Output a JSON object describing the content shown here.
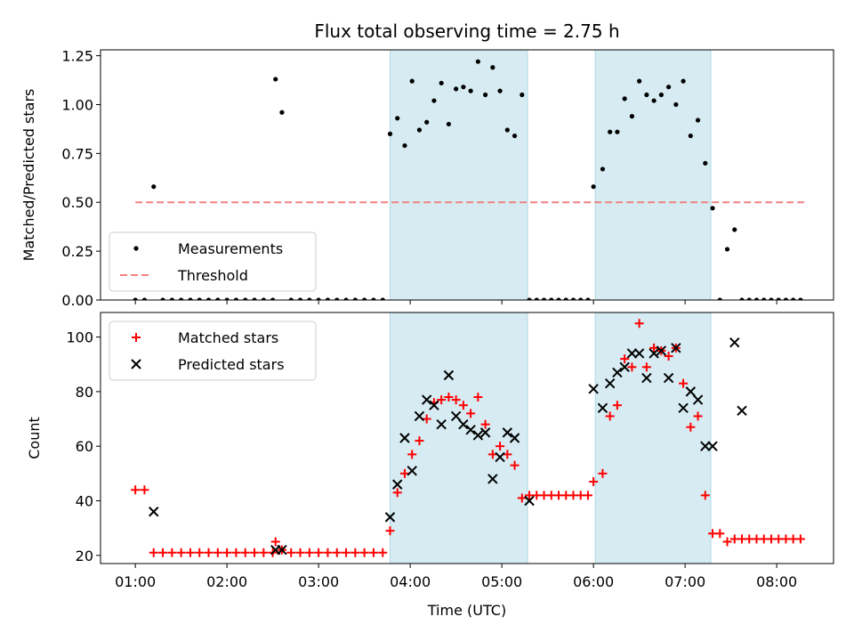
{
  "chart_data": {
    "type": "scatter",
    "title": "Flux total observing time = 2.75 h",
    "shaded_intervals_hours": [
      [
        3.78,
        5.28
      ],
      [
        6.02,
        7.28
      ]
    ],
    "shade_color": "#add8e6",
    "panels": [
      {
        "id": "ratio",
        "xlabel": "",
        "ylabel": "Matched/Predicted stars",
        "ylim": [
          0.0,
          1.28
        ],
        "yticks": [
          0.0,
          0.25,
          0.5,
          0.75,
          1.0,
          1.25
        ],
        "ytick_labels": [
          "0.00",
          "0.25",
          "0.50",
          "0.75",
          "1.00",
          "1.25"
        ],
        "legend_position": "lower-left",
        "series": [
          {
            "name": "Measurements",
            "marker": "dot",
            "color": "#000000",
            "x": [
              1.0,
              1.1,
              1.2,
              1.3,
              1.4,
              1.5,
              1.6,
              1.7,
              1.8,
              1.9,
              2.0,
              2.1,
              2.2,
              2.3,
              2.4,
              2.5,
              2.53,
              2.6,
              2.7,
              2.8,
              2.9,
              3.0,
              3.1,
              3.2,
              3.3,
              3.4,
              3.5,
              3.6,
              3.7,
              3.78,
              3.86,
              3.94,
              4.02,
              4.1,
              4.18,
              4.26,
              4.34,
              4.42,
              4.5,
              4.58,
              4.66,
              4.74,
              4.82,
              4.9,
              4.98,
              5.06,
              5.14,
              5.22,
              5.3,
              5.38,
              5.46,
              5.54,
              5.62,
              5.7,
              5.78,
              5.86,
              5.94,
              6.0,
              6.1,
              6.18,
              6.26,
              6.34,
              6.42,
              6.5,
              6.58,
              6.66,
              6.74,
              6.82,
              6.9,
              6.98,
              7.06,
              7.14,
              7.22,
              7.3,
              7.38,
              7.46,
              7.54,
              7.62,
              7.7,
              7.78,
              7.86,
              7.94,
              8.02,
              8.1,
              8.18,
              8.26
            ],
            "y": [
              0.0,
              0.0,
              0.58,
              0.0,
              0.0,
              0.0,
              0.0,
              0.0,
              0.0,
              0.0,
              0.0,
              0.0,
              0.0,
              0.0,
              0.0,
              0.0,
              1.13,
              0.96,
              0.0,
              0.0,
              0.0,
              0.0,
              0.0,
              0.0,
              0.0,
              0.0,
              0.0,
              0.0,
              0.0,
              0.85,
              0.93,
              0.79,
              1.12,
              0.87,
              0.91,
              1.02,
              1.11,
              0.9,
              1.08,
              1.09,
              1.07,
              1.22,
              1.05,
              1.19,
              1.07,
              0.87,
              0.84,
              1.05,
              0.0,
              0.0,
              0.0,
              0.0,
              0.0,
              0.0,
              0.0,
              0.0,
              0.0,
              0.58,
              0.67,
              0.86,
              0.86,
              1.03,
              0.94,
              1.12,
              1.05,
              1.02,
              1.05,
              1.09,
              1.0,
              1.12,
              0.84,
              0.92,
              0.7,
              0.47,
              0.0,
              0.26,
              0.36,
              0.0,
              0.0,
              0.0,
              0.0,
              0.0,
              0.0,
              0.0,
              0.0,
              0.0
            ]
          },
          {
            "name": "Threshold",
            "marker": "dashed-line",
            "color": "#f08080",
            "x": [
              1.0,
              8.3
            ],
            "y": [
              0.5,
              0.5
            ]
          }
        ]
      },
      {
        "id": "count",
        "xlabel": "Time (UTC)",
        "ylabel": "Count",
        "ylim": [
          17.0,
          109.0
        ],
        "yticks": [
          20,
          40,
          60,
          80,
          100
        ],
        "ytick_labels": [
          "20",
          "40",
          "60",
          "80",
          "100"
        ],
        "legend_position": "upper-left",
        "series": [
          {
            "name": "Matched stars",
            "marker": "plus",
            "color": "#ff0000",
            "x": [
              1.0,
              1.1,
              1.2,
              1.3,
              1.4,
              1.5,
              1.6,
              1.7,
              1.8,
              1.9,
              2.0,
              2.1,
              2.2,
              2.3,
              2.4,
              2.5,
              2.53,
              2.6,
              2.7,
              2.8,
              2.9,
              3.0,
              3.1,
              3.2,
              3.3,
              3.4,
              3.5,
              3.6,
              3.7,
              3.78,
              3.86,
              3.94,
              4.02,
              4.1,
              4.18,
              4.26,
              4.34,
              4.42,
              4.5,
              4.58,
              4.66,
              4.74,
              4.82,
              4.9,
              4.98,
              5.06,
              5.14,
              5.22,
              5.3,
              5.38,
              5.46,
              5.54,
              5.62,
              5.7,
              5.78,
              5.86,
              5.94,
              6.0,
              6.1,
              6.18,
              6.26,
              6.34,
              6.42,
              6.5,
              6.58,
              6.66,
              6.74,
              6.82,
              6.9,
              6.98,
              7.06,
              7.14,
              7.22,
              7.3,
              7.38,
              7.46,
              7.54,
              7.62,
              7.7,
              7.78,
              7.86,
              7.94,
              8.02,
              8.1,
              8.18,
              8.26
            ],
            "y": [
              44,
              44,
              21,
              21,
              21,
              21,
              21,
              21,
              21,
              21,
              21,
              21,
              21,
              21,
              21,
              21,
              25,
              22,
              21,
              21,
              21,
              21,
              21,
              21,
              21,
              21,
              21,
              21,
              21,
              29,
              43,
              50,
              57,
              62,
              70,
              76,
              77,
              78,
              77,
              75,
              72,
              78,
              68,
              57,
              60,
              57,
              53,
              41,
              42,
              42,
              42,
              42,
              42,
              42,
              42,
              42,
              42,
              47,
              50,
              71,
              75,
              92,
              89,
              105,
              89,
              96,
              95,
              93,
              96,
              83,
              67,
              71,
              42,
              28,
              28,
              25,
              26,
              26,
              26,
              26,
              26,
              26,
              26,
              26,
              26,
              26
            ]
          },
          {
            "name": "Predicted stars",
            "marker": "x",
            "color": "#000000",
            "x": [
              1.2,
              2.53,
              2.6,
              3.78,
              3.86,
              3.94,
              4.02,
              4.1,
              4.18,
              4.26,
              4.34,
              4.42,
              4.5,
              4.58,
              4.66,
              4.74,
              4.82,
              4.9,
              4.98,
              5.06,
              5.14,
              5.3,
              6.0,
              6.1,
              6.18,
              6.26,
              6.34,
              6.42,
              6.5,
              6.58,
              6.66,
              6.74,
              6.82,
              6.9,
              6.98,
              7.06,
              7.14,
              7.22,
              7.3,
              7.54,
              7.62
            ],
            "y": [
              36,
              22,
              22,
              34,
              46,
              63,
              51,
              71,
              77,
              75,
              68,
              86,
              71,
              68,
              66,
              64,
              65,
              48,
              56,
              65,
              63,
              40,
              81,
              74,
              83,
              87,
              89,
              94,
              94,
              85,
              94,
              95,
              85,
              96,
              74,
              80,
              77,
              60,
              60,
              98,
              73
            ]
          }
        ]
      }
    ],
    "x_axis": {
      "unit": "hours UTC",
      "xlim": [
        0.62,
        8.62
      ],
      "ticks": [
        1,
        2,
        3,
        4,
        5,
        6,
        7,
        8
      ],
      "tick_labels": [
        "01:00",
        "02:00",
        "03:00",
        "04:00",
        "05:00",
        "06:00",
        "07:00",
        "08:00"
      ]
    }
  }
}
